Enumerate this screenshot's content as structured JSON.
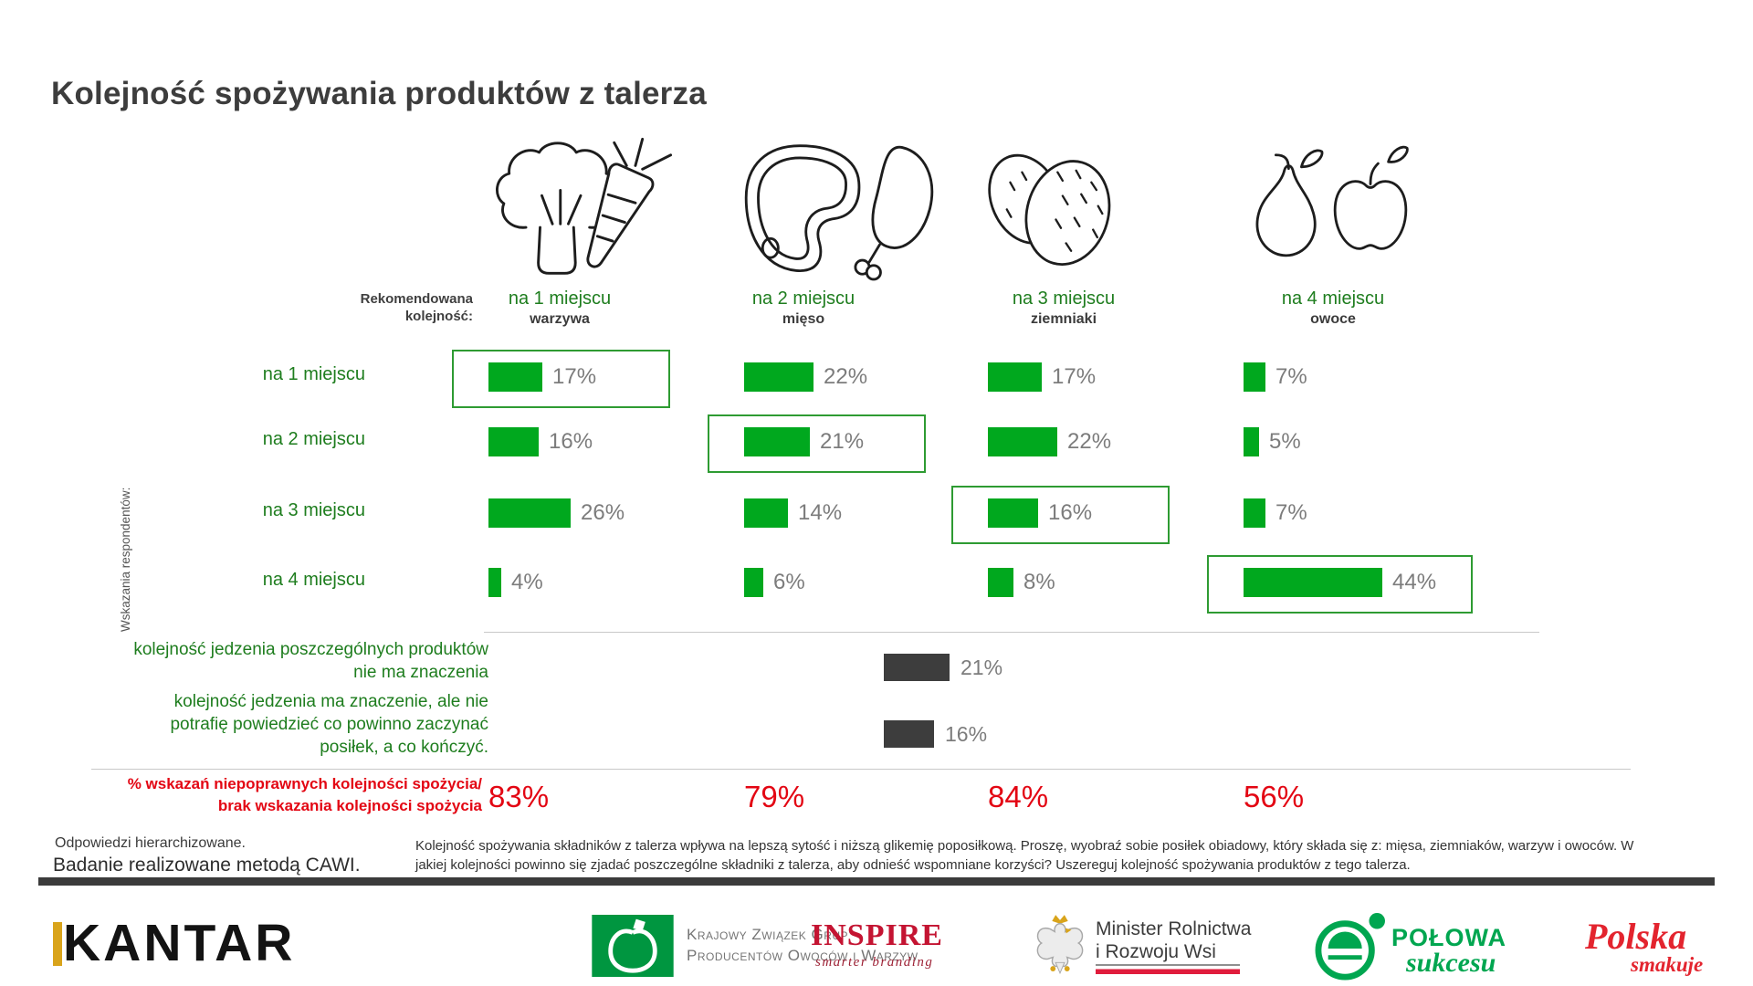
{
  "title": "Kolejność spożywania produktów z talerza",
  "recommended_label": "Rekomendowana kolejność:",
  "axis_label": "Wskazania respondentów:",
  "columns": [
    {
      "place": "na 1 miejscu",
      "product": "warzywa",
      "icon": "vegetables-icon"
    },
    {
      "place": "na 2 miejscu",
      "product": "mięso",
      "icon": "meat-icon"
    },
    {
      "place": "na 3 miejscu",
      "product": "ziemniaki",
      "icon": "potatoes-icon"
    },
    {
      "place": "na 4 miejscu",
      "product": "owoce",
      "icon": "fruits-icon"
    }
  ],
  "rows": [
    {
      "label": "na 1 miejscu",
      "values": [
        17,
        22,
        17,
        7
      ],
      "highlight": 0
    },
    {
      "label": "na 2 miejscu",
      "values": [
        16,
        21,
        22,
        5
      ],
      "highlight": 1
    },
    {
      "label": "na 3 miejscu",
      "values": [
        26,
        14,
        16,
        7
      ],
      "highlight": 2
    },
    {
      "label": "na 4 miejscu",
      "values": [
        4,
        6,
        8,
        44
      ],
      "highlight": 3
    }
  ],
  "extra_rows": [
    {
      "label": "kolejność jedzenia poszczególnych produktów nie ma znaczenia",
      "value": 21
    },
    {
      "label": "kolejność jedzenia ma znaczenie, ale nie potrafię powiedzieć co powinno zaczynać posiłek, a co kończyć.",
      "value": 16
    }
  ],
  "incorrect_row": {
    "lines": [
      "% wskazań niepoprawnych kolejności spożycia/",
      "brak wskazania kolejności spożycia"
    ],
    "values": [
      "83%",
      "79%",
      "84%",
      "56%"
    ]
  },
  "footnotes": {
    "note1": "Odpowiedzi hierarchizowane.",
    "note2": "Badanie realizowane metodą CAWI.",
    "question": "Kolejność spożywania składników z talerza wpływa na lepszą sytość i niższą glikemię poposiłkową. Proszę, wyobraź sobie posiłek obiadowy, który składa się z: mięsa, ziemniaków, warzyw i owoców. W jakiej kolejności powinno się zjadać poszczególne składniki z talerza, aby odnieść wspomniane korzyści? Uszereguj kolejność spożywania produktów z tego talerza."
  },
  "logos": {
    "kantar": "KANTAR",
    "kzgpow": {
      "line1": "Krajowy Związek Grup",
      "line2": "Producentów Owoców i Warzyw"
    },
    "inspire": {
      "name": "INSPIRE",
      "tagline": "smarter branding"
    },
    "minister": {
      "line1": "Minister Rolnictwa",
      "line2": "i Rozwoju Wsi"
    },
    "polowa": {
      "line1": "POŁOWA",
      "line2": "sukcesu"
    },
    "polska": {
      "line1": "Polska",
      "line2": "smakuje"
    }
  },
  "colors": {
    "bar_green": "#00a81e",
    "text_green": "#1e7d1e",
    "box_green": "#2e9b32",
    "dark_bar": "#3d3d3d",
    "value_gray": "#7c7c7c",
    "red": "#e30613",
    "title_gray": "#3d3d3d",
    "kantar_gold": "#d9a41b",
    "kzg_green": "#009640",
    "inspire_red": "#c41432",
    "flag_red": "#e01c3c",
    "polowa_green": "#00a650",
    "polska_red": "#e3242e"
  },
  "chart_data": {
    "type": "bar",
    "title": "Kolejność spożywania produktów z talerza",
    "unit": "%",
    "categories": [
      "warzywa",
      "mięso",
      "ziemniaki",
      "owoce"
    ],
    "rows": [
      "na 1 miejscu",
      "na 2 miejscu",
      "na 3 miejscu",
      "na 4 miejscu"
    ],
    "series": [
      {
        "name": "warzywa",
        "recommended_place": "na 1 miejscu",
        "values": [
          17,
          16,
          26,
          4
        ]
      },
      {
        "name": "mięso",
        "recommended_place": "na 2 miejscu",
        "values": [
          22,
          21,
          14,
          6
        ]
      },
      {
        "name": "ziemniaki",
        "recommended_place": "na 3 miejscu",
        "values": [
          17,
          22,
          16,
          8
        ]
      },
      {
        "name": "owoce",
        "recommended_place": "na 4 miejscu",
        "values": [
          7,
          5,
          7,
          44
        ]
      }
    ],
    "other_answers": [
      {
        "label": "kolejność jedzenia poszczególnych produktów nie ma znaczenia",
        "value": 21
      },
      {
        "label": "kolejność jedzenia ma znaczenie, ale nie potrafię powiedzieć co powinno zaczynać posiłek, a co kończyć.",
        "value": 16
      }
    ],
    "incorrect_or_missing_pct": {
      "warzywa": 83,
      "mięso": 79,
      "ziemniaki": 84,
      "owoce": 56
    },
    "legend_position": "none",
    "grid": false
  }
}
